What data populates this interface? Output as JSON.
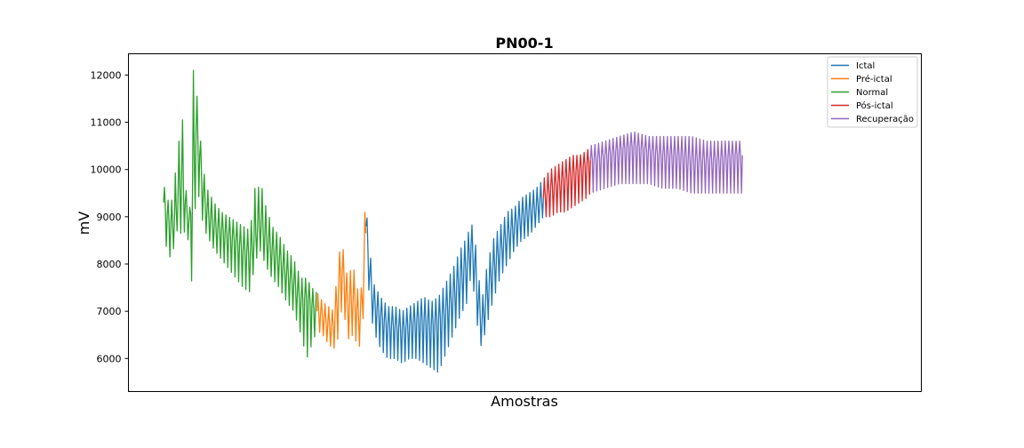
{
  "chart_data": {
    "type": "line",
    "title": "PN00-1",
    "xlabel": "Amostras",
    "ylabel": "mV",
    "xlim": [
      0,
      1000
    ],
    "ylim": [
      5300,
      12450
    ],
    "yticks": [
      6000,
      7000,
      8000,
      9000,
      10000,
      11000,
      12000
    ],
    "grid": false,
    "legend_position": "top-right",
    "legend_order": [
      "Ictal",
      "Pré-ictal",
      "Normal",
      "Pós-ictal",
      "Recuperação"
    ],
    "series": [
      {
        "name": "Normal",
        "color": "#2ca02c",
        "points": [
          [
            0,
            9300,
            9700,
            8600
          ],
          [
            5,
            9000,
            9400,
            8300
          ],
          [
            10,
            8800,
            9200,
            8100
          ],
          [
            15,
            8900,
            9800,
            8400
          ],
          [
            20,
            9400,
            10300,
            8800
          ],
          [
            25,
            9900,
            11500,
            8600
          ],
          [
            30,
            9300,
            9700,
            8700
          ],
          [
            36,
            8800,
            9000,
            8400
          ],
          [
            40,
            9500,
            12200,
            7300
          ],
          [
            45,
            10900,
            11800,
            9800
          ],
          [
            50,
            10300,
            10800,
            9300
          ],
          [
            55,
            9500,
            10000,
            8800
          ],
          [
            60,
            9100,
            9600,
            8600
          ],
          [
            70,
            8800,
            9300,
            8300
          ],
          [
            80,
            8700,
            9100,
            8100
          ],
          [
            90,
            8600,
            9000,
            7900
          ],
          [
            100,
            8500,
            8900,
            7700
          ],
          [
            110,
            8300,
            8800,
            7500
          ],
          [
            120,
            8200,
            8700,
            7400
          ],
          [
            125,
            8500,
            9600,
            7900
          ],
          [
            130,
            8800,
            9600,
            8200
          ],
          [
            135,
            8900,
            9700,
            8300
          ],
          [
            140,
            8600,
            9300,
            8000
          ],
          [
            150,
            8300,
            8800,
            7700
          ],
          [
            160,
            8100,
            8600,
            7500
          ],
          [
            170,
            7800,
            8300,
            7200
          ],
          [
            180,
            7600,
            8100,
            7000
          ],
          [
            190,
            7200,
            7700,
            6500
          ],
          [
            198,
            7300,
            7700,
            6000
          ],
          [
            205,
            7100,
            7500,
            6300
          ],
          [
            212,
            7000,
            7400,
            6600
          ]
        ]
      },
      {
        "name": "Pré-ictal",
        "color": "#ff7f0e",
        "points": [
          [
            212,
            7000,
            7400,
            6600
          ],
          [
            220,
            6900,
            7200,
            6500
          ],
          [
            228,
            6700,
            7100,
            6300
          ],
          [
            235,
            6700,
            7000,
            6200
          ],
          [
            240,
            7200,
            7800,
            6300
          ],
          [
            245,
            7900,
            8500,
            7000
          ],
          [
            250,
            7700,
            8200,
            6900
          ],
          [
            255,
            7000,
            7600,
            6400
          ],
          [
            260,
            7300,
            8000,
            6500
          ],
          [
            265,
            7200,
            7800,
            6400
          ],
          [
            270,
            6800,
            7300,
            6200
          ],
          [
            275,
            7300,
            7600,
            6600
          ],
          [
            280,
            8800,
            9900,
            8200
          ]
        ]
      },
      {
        "name": "Ictal",
        "color": "#1f77b4",
        "points": [
          [
            280,
            8800,
            9200,
            8200
          ],
          [
            285,
            7800,
            8300,
            7200
          ],
          [
            290,
            7200,
            7600,
            6600
          ],
          [
            300,
            6900,
            7300,
            6200
          ],
          [
            310,
            6700,
            7100,
            6000
          ],
          [
            320,
            6700,
            7100,
            6000
          ],
          [
            330,
            6600,
            7000,
            5900
          ],
          [
            340,
            6700,
            7100,
            6000
          ],
          [
            350,
            6800,
            7200,
            6000
          ],
          [
            360,
            6800,
            7300,
            5900
          ],
          [
            370,
            6700,
            7200,
            5800
          ],
          [
            380,
            6800,
            7300,
            5700
          ],
          [
            390,
            7000,
            7600,
            6100
          ],
          [
            400,
            7300,
            7900,
            6500
          ],
          [
            410,
            7700,
            8300,
            6900
          ],
          [
            420,
            8000,
            8600,
            7200
          ],
          [
            425,
            8400,
            8900,
            7800
          ],
          [
            430,
            8000,
            8600,
            7300
          ],
          [
            435,
            7200,
            7800,
            6500
          ],
          [
            440,
            6700,
            7200,
            6200
          ],
          [
            445,
            7200,
            7800,
            6600
          ],
          [
            455,
            7900,
            8500,
            7200
          ],
          [
            465,
            8300,
            8800,
            7700
          ],
          [
            475,
            8600,
            9100,
            8000
          ],
          [
            485,
            8800,
            9200,
            8300
          ],
          [
            495,
            9000,
            9400,
            8500
          ],
          [
            505,
            9100,
            9500,
            8600
          ],
          [
            515,
            9200,
            9600,
            8800
          ],
          [
            525,
            9400,
            9800,
            9000
          ]
        ]
      },
      {
        "name": "Pós-ictal",
        "color": "#d62728",
        "points": [
          [
            525,
            9400,
            9800,
            9000
          ],
          [
            535,
            9600,
            10000,
            9000
          ],
          [
            545,
            9700,
            10100,
            9100
          ],
          [
            555,
            9800,
            10200,
            9100
          ],
          [
            565,
            9900,
            10300,
            9200
          ],
          [
            575,
            10000,
            10300,
            9300
          ],
          [
            585,
            10100,
            10400,
            9400
          ],
          [
            590,
            10200,
            10500,
            9500
          ]
        ]
      },
      {
        "name": "Recuperação",
        "color": "#9467bd",
        "points": [
          [
            590,
            10200,
            10500,
            9500
          ],
          [
            610,
            10300,
            10600,
            9600
          ],
          [
            630,
            10400,
            10700,
            9700
          ],
          [
            650,
            10500,
            10800,
            9700
          ],
          [
            670,
            10400,
            10700,
            9700
          ],
          [
            690,
            10300,
            10700,
            9600
          ],
          [
            710,
            10300,
            10700,
            9600
          ],
          [
            730,
            10200,
            10700,
            9500
          ],
          [
            750,
            10200,
            10600,
            9500
          ],
          [
            770,
            10200,
            10600,
            9500
          ],
          [
            790,
            10300,
            10600,
            9500
          ],
          [
            800,
            10300,
            10600,
            9500
          ]
        ]
      }
    ]
  }
}
